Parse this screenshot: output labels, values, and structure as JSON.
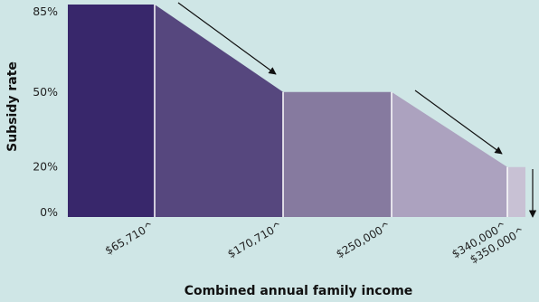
{
  "chart_data": {
    "type": "area",
    "title": "",
    "xlabel": "Combined annual family income",
    "ylabel": "Subsidy rate",
    "y_ticks": [
      "85%",
      "50%",
      "20%",
      "0%"
    ],
    "y_tick_values": [
      85,
      50,
      20,
      0
    ],
    "x_ticks": [
      "$65,710^",
      "$170,710^",
      "$250,000^",
      "$340,000^",
      "$350,000^"
    ],
    "x_tick_values": [
      65710,
      170710,
      250000,
      340000,
      350000
    ],
    "segments": [
      {
        "x0": 0,
        "x1": 65710,
        "y0": 85,
        "y1": 85,
        "color": "#38276b"
      },
      {
        "x0": 65710,
        "x1": 170710,
        "y0": 85,
        "y1": 50,
        "color": "#56477e"
      },
      {
        "x0": 170710,
        "x1": 250000,
        "y0": 50,
        "y1": 50,
        "color": "#867a9f"
      },
      {
        "x0": 250000,
        "x1": 340000,
        "y0": 50,
        "y1": 20,
        "color": "#aca2bf"
      },
      {
        "x0": 340000,
        "x1": 350000,
        "y0": 20,
        "y1": 20,
        "color": "#c8c1d4"
      }
    ],
    "arrows": [
      "down-right",
      "down-right",
      "down"
    ],
    "ylim": [
      0,
      85
    ],
    "xlim": [
      0,
      350000
    ],
    "grid": false,
    "legend": "none"
  }
}
